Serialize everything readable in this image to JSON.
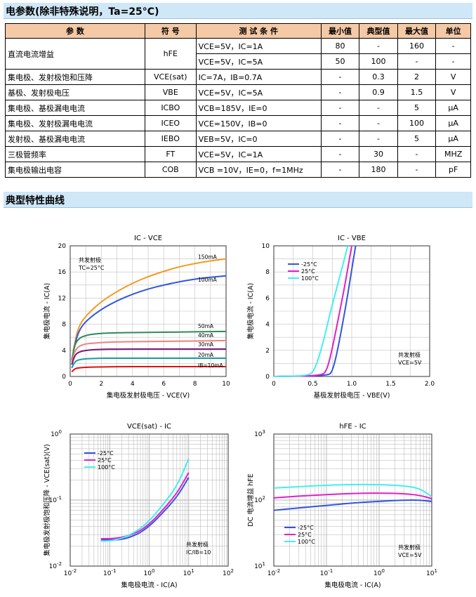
{
  "section1": {
    "title": "电参数(除非特殊说明，Ta=25°C)"
  },
  "table": {
    "headers": [
      "参  数",
      "符 号",
      "测 试 条 件",
      "最小值",
      "典型值",
      "最大值",
      "单位"
    ],
    "rows": [
      {
        "param": "直流电流增益",
        "symbol": "hFE",
        "cond": "VCE=5V，IC=1A",
        "min": "80",
        "typ": "-",
        "max": "160",
        "unit": "-"
      },
      {
        "param": "",
        "symbol": "",
        "cond": "VCE=5V，IC=5A",
        "min": "50",
        "typ": "100",
        "max": "-",
        "unit": "-"
      },
      {
        "param": "集电极、发射极饱和压降",
        "symbol": "VCE(sat)",
        "cond": "IC=7A，IB=0.7A",
        "min": "-",
        "typ": "0.3",
        "max": "2",
        "unit": "V"
      },
      {
        "param": "基极、发射极电压",
        "symbol": "VBE",
        "cond": "VCE=5V，IC=5A",
        "min": "-",
        "typ": "0.9",
        "max": "1.5",
        "unit": "V"
      },
      {
        "param": "集电极、基极漏电电流",
        "symbol": "ICBO",
        "cond": "VCB=185V，IE=0",
        "min": "-",
        "typ": "-",
        "max": "5",
        "unit": "μA"
      },
      {
        "param": "集电极、发射极漏电电流",
        "symbol": "ICEO",
        "cond": "VCE=150V，IB=0",
        "min": "-",
        "typ": "-",
        "max": "100",
        "unit": "μA"
      },
      {
        "param": "发射极、基极漏电电流",
        "symbol": "IEBO",
        "cond": "VEB=5V，IC=0",
        "min": "-",
        "typ": "-",
        "max": "5",
        "unit": "μA"
      },
      {
        "param": "三极管频率",
        "symbol": "FT",
        "cond": "VCE=5V，IC=1A",
        "min": "-",
        "typ": "30",
        "max": "-",
        "unit": "MHZ"
      },
      {
        "param": "集电极输出电容",
        "symbol": "COB",
        "cond": "VCB =10V，IE=0，f=1MHz",
        "min": "-",
        "typ": "180",
        "max": "-",
        "unit": "pF"
      }
    ]
  },
  "section2": {
    "title": "典型特性曲线"
  },
  "colors": {
    "blue": "#3355dd",
    "magenta": "#e020c8",
    "cyan": "#44eeee",
    "orange": "#f39a22",
    "darkgreen": "#2e8b57",
    "purple": "#7a1a7a",
    "red": "#e01010",
    "teal": "#1a9aa0",
    "header_bg": "#f4c9a6",
    "section_bg": "#cfe7f7"
  },
  "chart_data": [
    {
      "type": "line",
      "title": "IC - VCE",
      "xlabel": "集电极发射极电压 - VCE(V)",
      "ylabel": "集电极电流 - IC(A)",
      "xlim": [
        0,
        10
      ],
      "ylim": [
        0,
        20
      ],
      "xticks": [
        0,
        2,
        4,
        6,
        8,
        10
      ],
      "yticks": [
        0,
        4,
        8,
        12,
        16,
        20
      ],
      "annotation": [
        "共发射极",
        "TC=25°C"
      ],
      "series": [
        {
          "name": "150mA",
          "x": [
            0.2,
            0.5,
            1,
            2,
            3,
            4,
            5,
            6,
            7,
            8,
            9,
            10
          ],
          "y": [
            4.0,
            7.5,
            9.3,
            11.5,
            13.0,
            14.3,
            15.3,
            16.1,
            16.8,
            17.3,
            17.7,
            18.0
          ]
        },
        {
          "name": "100mA",
          "x": [
            0.2,
            0.5,
            1,
            2,
            3,
            4,
            5,
            6,
            7,
            8,
            9,
            10
          ],
          "y": [
            3.8,
            6.8,
            8.5,
            10.3,
            11.6,
            12.6,
            13.4,
            14.0,
            14.5,
            14.9,
            15.2,
            15.4
          ]
        },
        {
          "name": "50mA",
          "x": [
            0.1,
            0.3,
            0.6,
            1,
            1.5,
            2,
            3,
            5,
            7,
            10
          ],
          "y": [
            2.5,
            5.0,
            5.9,
            6.3,
            6.5,
            6.6,
            6.7,
            6.75,
            6.8,
            6.9
          ]
        },
        {
          "name": "40mA",
          "x": [
            0.1,
            0.3,
            0.6,
            1,
            1.5,
            2,
            3,
            5,
            7,
            10
          ],
          "y": [
            2.2,
            4.0,
            4.7,
            5.0,
            5.1,
            5.2,
            5.3,
            5.35,
            5.4,
            5.5
          ]
        },
        {
          "name": "30mA",
          "x": [
            0.1,
            0.3,
            0.6,
            1,
            1.5,
            2,
            3,
            5,
            7,
            10
          ],
          "y": [
            1.8,
            3.3,
            3.8,
            4.0,
            4.1,
            4.15,
            4.2,
            4.2,
            4.2,
            4.2
          ]
        },
        {
          "name": "20mA",
          "x": [
            0.1,
            0.3,
            0.6,
            1,
            1.5,
            2,
            3,
            5,
            7,
            10
          ],
          "y": [
            1.3,
            2.3,
            2.6,
            2.7,
            2.75,
            2.8,
            2.8,
            2.8,
            2.8,
            2.8
          ]
        },
        {
          "name": "IB=10mA",
          "x": [
            0.1,
            0.3,
            0.6,
            1,
            1.5,
            2,
            3,
            5,
            7,
            10
          ],
          "y": [
            0.7,
            1.2,
            1.35,
            1.4,
            1.45,
            1.45,
            1.5,
            1.5,
            1.5,
            1.5
          ]
        }
      ]
    },
    {
      "type": "line",
      "title": "IC - VBE",
      "xlabel": "基极发射极电压 - VBE(V)",
      "ylabel": "集电极电流 - IC(A)",
      "xlim": [
        0,
        2.0
      ],
      "ylim": [
        0,
        10
      ],
      "xticks": [
        0,
        0.5,
        1.0,
        1.5,
        2.0
      ],
      "yticks": [
        0,
        2,
        4,
        6,
        8,
        10
      ],
      "annotation": [
        "共发射极",
        "VCE=5V"
      ],
      "series": [
        {
          "name": "-25°C",
          "x": [
            0,
            0.7,
            0.75,
            0.8,
            0.85,
            0.9,
            0.95,
            1.0,
            1.05
          ],
          "y": [
            0,
            0.05,
            0.4,
            1.5,
            3.0,
            4.6,
            6.3,
            8.2,
            10
          ]
        },
        {
          "name": "25°C",
          "x": [
            0,
            0.62,
            0.68,
            0.73,
            0.78,
            0.84,
            0.9,
            0.95,
            1.0
          ],
          "y": [
            0,
            0.05,
            0.5,
            1.6,
            3.0,
            4.8,
            6.6,
            8.3,
            10
          ]
        },
        {
          "name": "100°C",
          "x": [
            0,
            0.45,
            0.52,
            0.58,
            0.65,
            0.72,
            0.8,
            0.88,
            0.95
          ],
          "y": [
            0,
            0.05,
            0.5,
            1.5,
            3.0,
            4.8,
            6.6,
            8.4,
            10
          ]
        }
      ]
    },
    {
      "type": "line",
      "title": "VCE(sat) - IC",
      "xlabel": "集电极电流 - IC(A)",
      "ylabel": "集电极发射极饱和压降 - VCE(sat)(V)",
      "xscale": "log",
      "yscale": "log",
      "xlim": [
        0.01,
        100
      ],
      "ylim": [
        0.01,
        1
      ],
      "annotation": [
        "共发射极",
        "IC/IB=10"
      ],
      "series": [
        {
          "name": "-25°C",
          "x": [
            0.06,
            0.1,
            0.2,
            0.5,
            1,
            2,
            5,
            10
          ],
          "y": [
            0.025,
            0.025,
            0.025,
            0.03,
            0.04,
            0.06,
            0.11,
            0.22
          ]
        },
        {
          "name": "25°C",
          "x": [
            0.06,
            0.1,
            0.2,
            0.5,
            1,
            2,
            5,
            10
          ],
          "y": [
            0.026,
            0.026,
            0.027,
            0.032,
            0.043,
            0.066,
            0.125,
            0.26
          ]
        },
        {
          "name": "100°C",
          "x": [
            0.06,
            0.1,
            0.2,
            0.5,
            1,
            2,
            5,
            10
          ],
          "y": [
            0.024,
            0.024,
            0.026,
            0.034,
            0.048,
            0.078,
            0.16,
            0.42
          ]
        }
      ]
    },
    {
      "type": "line",
      "title": "hFE - IC",
      "xlabel": "集电极电流 - IC(A)",
      "ylabel": "DC 电流增益 hFE",
      "xscale": "log",
      "yscale": "log",
      "xlim": [
        0.01,
        10
      ],
      "ylim": [
        10,
        1000
      ],
      "annotation": [
        "共发射极",
        "VCE=5V"
      ],
      "series": [
        {
          "name": "-25°C",
          "x": [
            0.01,
            0.03,
            0.1,
            0.3,
            1,
            3,
            6,
            10
          ],
          "y": [
            70,
            76,
            83,
            90,
            96,
            100,
            100,
            95
          ]
        },
        {
          "name": "25°C",
          "x": [
            0.01,
            0.03,
            0.1,
            0.3,
            1,
            3,
            6,
            10
          ],
          "y": [
            108,
            115,
            121,
            126,
            128,
            125,
            118,
            105
          ]
        },
        {
          "name": "100°C",
          "x": [
            0.01,
            0.03,
            0.1,
            0.3,
            1,
            3,
            6,
            10
          ],
          "y": [
            152,
            160,
            168,
            172,
            172,
            165,
            150,
            112
          ]
        }
      ]
    }
  ]
}
